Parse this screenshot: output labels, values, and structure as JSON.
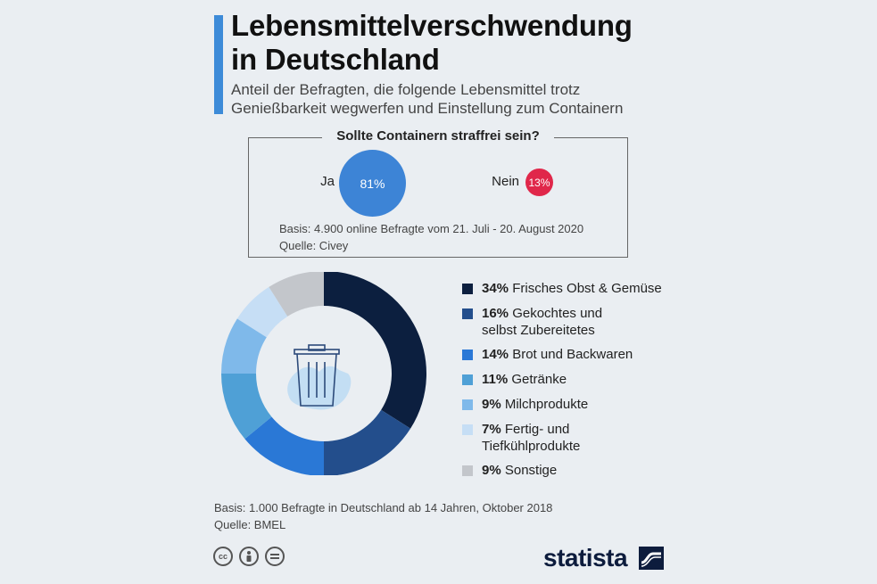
{
  "header": {
    "title_line1": "Lebensmittelverschwendung",
    "title_line2": "in Deutschland",
    "subtitle_line1": "Anteil der Befragten, die folgende Lebensmittel trotz",
    "subtitle_line2": "Genießbarkeit wegwerfen und Einstellung zum Containern"
  },
  "poll": {
    "title": "Sollte Containern straffrei sein?",
    "yes_label": "Ja",
    "yes_value": "81%",
    "no_label": "Nein",
    "no_value": "13%",
    "basis": "Basis: 4.900 online Befragte vom 21. Juli - 20. August 2020",
    "source": "Quelle: Civey",
    "chart_data": {
      "type": "bubble",
      "categories": [
        "Ja",
        "Nein"
      ],
      "values": [
        81,
        13
      ],
      "unit": "%",
      "colors": [
        "#3d84d6",
        "#e0274a"
      ]
    }
  },
  "chart_data": {
    "type": "pie",
    "subtype": "donut",
    "unit": "%",
    "categories": [
      "Frisches Obst & Gemüse",
      "Gekochtes und selbst Zubereitetes",
      "Brot und Backwaren",
      "Getränke",
      "Milchprodukte",
      "Fertig- und Tiefkühlprodukte",
      "Sonstige"
    ],
    "values": [
      34,
      16,
      14,
      11,
      9,
      7,
      9
    ],
    "colors": [
      "#0c1f3f",
      "#234e8c",
      "#2a78d6",
      "#4fa0d6",
      "#7fb9ea",
      "#c6def5",
      "#c3c6cb"
    ],
    "center_icon": "trash-can-icon"
  },
  "legend": [
    {
      "value": "34%",
      "label_line1": "Frisches Obst & Gemüse",
      "label_line2": ""
    },
    {
      "value": "16%",
      "label_line1": "Gekochtes und",
      "label_line2": "selbst Zubereitetes"
    },
    {
      "value": "14%",
      "label_line1": "Brot und Backwaren",
      "label_line2": ""
    },
    {
      "value": "11%",
      "label_line1": "Getränke",
      "label_line2": ""
    },
    {
      "value": "9%",
      "label_line1": "Milchprodukte",
      "label_line2": ""
    },
    {
      "value": "7%",
      "label_line1": "Fertig- und",
      "label_line2": "Tiefkühlprodukte"
    },
    {
      "value": "9%",
      "label_line1": "Sonstige",
      "label_line2": ""
    }
  ],
  "footer": {
    "basis": "Basis: 1.000 Befragte in Deutschland ab 14 Jahren, Oktober 2018",
    "source": "Quelle: BMEL",
    "brand": "statista",
    "license_icons": [
      "cc-icon",
      "by-icon",
      "nd-icon"
    ]
  }
}
